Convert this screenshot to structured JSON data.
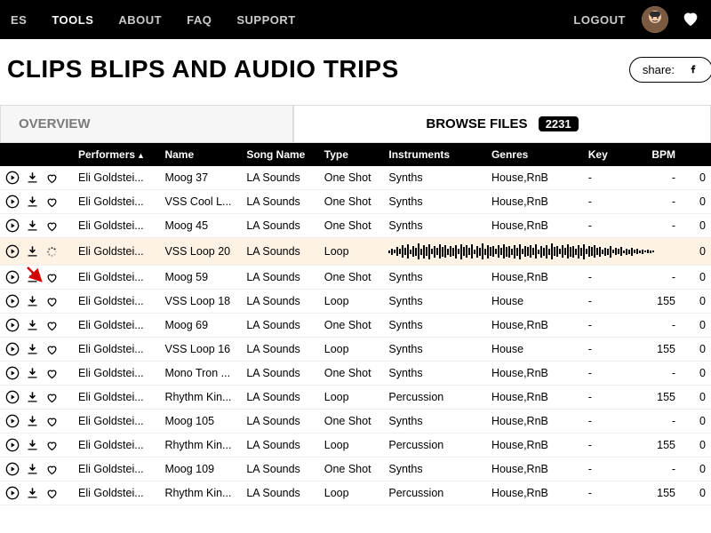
{
  "nav": {
    "item0": "ES",
    "item1": "TOOLS",
    "item2": "ABOUT",
    "item3": "FAQ",
    "item4": "SUPPORT",
    "logout": "LOGOUT"
  },
  "page_title": "CLIPS BLIPS AND AUDIO TRIPS",
  "share_label": "share:",
  "tabs": {
    "overview": "OVERVIEW",
    "browse": "BROWSE FILES",
    "count": "2231"
  },
  "columns": {
    "performers": "Performers",
    "name": "Name",
    "song": "Song Name",
    "type": "Type",
    "instruments": "Instruments",
    "genres": "Genres",
    "key": "Key",
    "bpm": "BPM"
  },
  "rows": [
    {
      "performer": "Eli Goldstei...",
      "name": "Moog 37",
      "song": "LA Sounds",
      "type": "One Shot",
      "inst": "Synths",
      "genre": "House,RnB",
      "key": "-",
      "bpm": "-",
      "last": "0"
    },
    {
      "performer": "Eli Goldstei...",
      "name": "VSS Cool L...",
      "song": "LA Sounds",
      "type": "One Shot",
      "inst": "Synths",
      "genre": "House,RnB",
      "key": "-",
      "bpm": "-",
      "last": "0"
    },
    {
      "performer": "Eli Goldstei...",
      "name": "Moog 45",
      "song": "LA Sounds",
      "type": "One Shot",
      "inst": "Synths",
      "genre": "House,RnB",
      "key": "-",
      "bpm": "-",
      "last": "0"
    },
    {
      "performer": "Eli Goldstei...",
      "name": "VSS Loop 20",
      "song": "LA Sounds",
      "type": "Loop",
      "inst": "",
      "genre": "",
      "key": "",
      "bpm": "",
      "last": "0",
      "highlight": true,
      "waveform": true,
      "loading": true
    },
    {
      "performer": "Eli Goldstei...",
      "name": "Moog 59",
      "song": "LA Sounds",
      "type": "One Shot",
      "inst": "Synths",
      "genre": "House,RnB",
      "key": "-",
      "bpm": "-",
      "last": "0"
    },
    {
      "performer": "Eli Goldstei...",
      "name": "VSS Loop 18",
      "song": "LA Sounds",
      "type": "Loop",
      "inst": "Synths",
      "genre": "House",
      "key": "-",
      "bpm": "155",
      "last": "0"
    },
    {
      "performer": "Eli Goldstei...",
      "name": "Moog 69",
      "song": "LA Sounds",
      "type": "One Shot",
      "inst": "Synths",
      "genre": "House,RnB",
      "key": "-",
      "bpm": "-",
      "last": "0"
    },
    {
      "performer": "Eli Goldstei...",
      "name": "VSS Loop 16",
      "song": "LA Sounds",
      "type": "Loop",
      "inst": "Synths",
      "genre": "House",
      "key": "-",
      "bpm": "155",
      "last": "0"
    },
    {
      "performer": "Eli Goldstei...",
      "name": "Mono Tron ...",
      "song": "LA Sounds",
      "type": "One Shot",
      "inst": "Synths",
      "genre": "House,RnB",
      "key": "-",
      "bpm": "-",
      "last": "0"
    },
    {
      "performer": "Eli Goldstei...",
      "name": "Rhythm Kin...",
      "song": "LA Sounds",
      "type": "Loop",
      "inst": "Percussion",
      "genre": "House,RnB",
      "key": "-",
      "bpm": "155",
      "last": "0"
    },
    {
      "performer": "Eli Goldstei...",
      "name": "Moog 105",
      "song": "LA Sounds",
      "type": "One Shot",
      "inst": "Synths",
      "genre": "House,RnB",
      "key": "-",
      "bpm": "-",
      "last": "0"
    },
    {
      "performer": "Eli Goldstei...",
      "name": "Rhythm Kin...",
      "song": "LA Sounds",
      "type": "Loop",
      "inst": "Percussion",
      "genre": "House,RnB",
      "key": "-",
      "bpm": "155",
      "last": "0"
    },
    {
      "performer": "Eli Goldstei...",
      "name": "Moog 109",
      "song": "LA Sounds",
      "type": "One Shot",
      "inst": "Synths",
      "genre": "House,RnB",
      "key": "-",
      "bpm": "-",
      "last": "0"
    },
    {
      "performer": "Eli Goldstei...",
      "name": "Rhythm Kin...",
      "song": "LA Sounds",
      "type": "Loop",
      "inst": "Percussion",
      "genre": "House,RnB",
      "key": "-",
      "bpm": "155",
      "last": "0"
    }
  ],
  "colors": {
    "highlight_bg": "#fdf2e4"
  }
}
